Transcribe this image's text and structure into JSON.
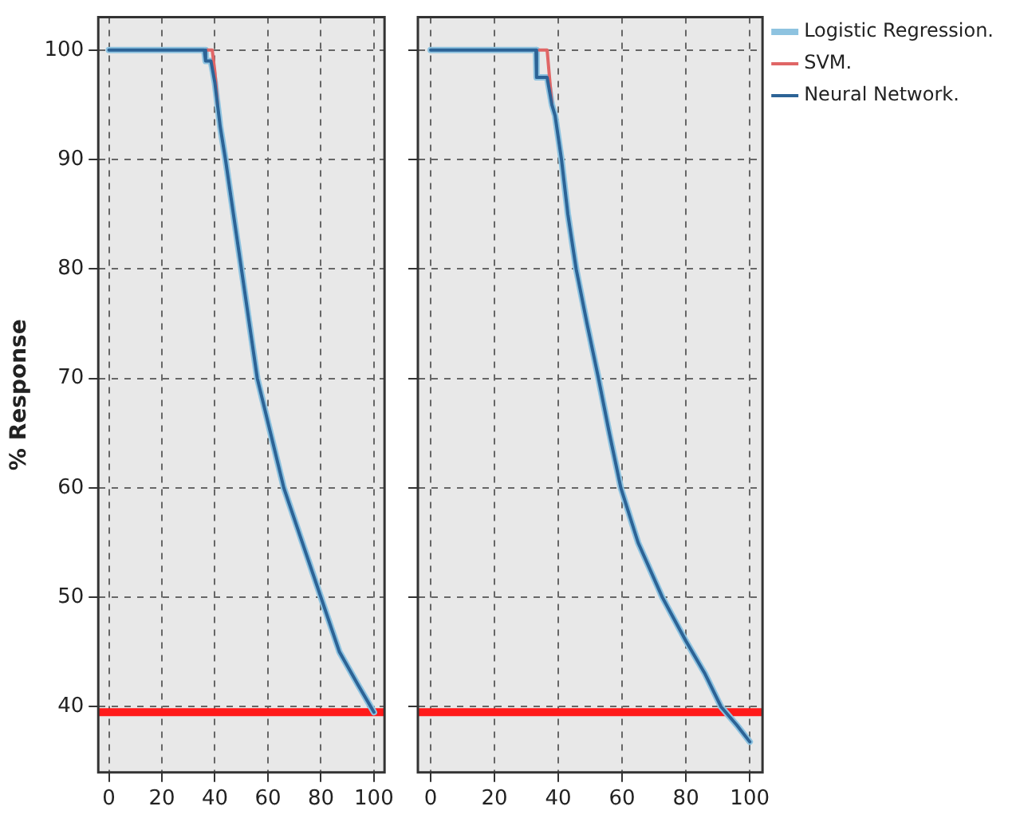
{
  "chart_data": [
    {
      "type": "line",
      "ylabel": "% Response",
      "xlim": [
        -4,
        104
      ],
      "ylim": [
        34,
        103
      ],
      "xticks": [
        0,
        20,
        40,
        60,
        80,
        100
      ],
      "yticks": [
        40,
        50,
        60,
        70,
        80,
        90,
        100
      ],
      "grid": true,
      "legend": false,
      "marker": "none",
      "line_style": "solid",
      "ref_lines": [
        {
          "axis": "y",
          "value": 39.5,
          "color": "#ff1a1a"
        }
      ],
      "series": [
        {
          "color": "#8ec3e0",
          "x": [
            0,
            36,
            36.5,
            38.5,
            40,
            42,
            44,
            47,
            50,
            53,
            56,
            61,
            66,
            73,
            80,
            87,
            94,
            100
          ],
          "values": [
            100,
            100,
            99,
            99,
            97,
            93,
            90,
            85,
            80,
            75,
            70,
            65,
            60,
            55,
            50,
            45,
            42,
            39.5
          ]
        },
        {
          "color": "#e06666",
          "x": [
            37,
            39,
            40,
            41
          ],
          "values": [
            100,
            100,
            98,
            95
          ]
        },
        {
          "color": "#2c6396",
          "x": [
            0,
            36,
            36.5,
            38.5,
            40,
            42,
            44,
            47,
            50,
            53,
            56,
            61,
            66,
            73,
            80,
            87,
            94,
            100
          ],
          "values": [
            100,
            100,
            99,
            99,
            97,
            93,
            90,
            85,
            80,
            75,
            70,
            65,
            60,
            55,
            50,
            45,
            42,
            39.5
          ]
        }
      ]
    },
    {
      "type": "line",
      "xlim": [
        -4,
        104
      ],
      "ylim": [
        34,
        103
      ],
      "xticks": [
        0,
        20,
        40,
        60,
        80,
        100
      ],
      "yticks": [
        40,
        50,
        60,
        70,
        80,
        90,
        100
      ],
      "grid": true,
      "legend": "right",
      "tick_labels": "x",
      "marker": "none",
      "line_style": "solid",
      "ref_lines": [
        {
          "axis": "y",
          "value": 39.5,
          "color": "#ff1a1a"
        }
      ],
      "series": [
        {
          "name": "Logistic Regression.",
          "color": "#8ec3e0",
          "x": [
            0,
            33,
            33.2,
            36.5,
            38,
            39,
            41,
            43,
            45.6,
            49,
            52.6,
            56,
            59.6,
            65,
            72.6,
            80,
            86,
            91,
            96,
            100
          ],
          "values": [
            100,
            100,
            97.5,
            97.5,
            95,
            94,
            90,
            85,
            80,
            75,
            70,
            65,
            60,
            55,
            50,
            46,
            43,
            40,
            38.3,
            36.8
          ]
        },
        {
          "name": "SVM.",
          "color": "#e06666",
          "x": [
            34,
            36.5,
            38
          ],
          "values": [
            100,
            100,
            95
          ]
        },
        {
          "name": "Neural Network.",
          "color": "#2c6396",
          "x": [
            0,
            33,
            33.2,
            36.5,
            38,
            39,
            41,
            43,
            45.6,
            49,
            52.6,
            56,
            59.6,
            65,
            72.6,
            80,
            86,
            91,
            96,
            100
          ],
          "values": [
            100,
            100,
            97.5,
            97.5,
            95,
            94,
            90,
            85,
            80,
            75,
            70,
            65,
            60,
            55,
            50,
            46,
            43,
            40,
            38.3,
            36.8
          ]
        }
      ]
    }
  ]
}
